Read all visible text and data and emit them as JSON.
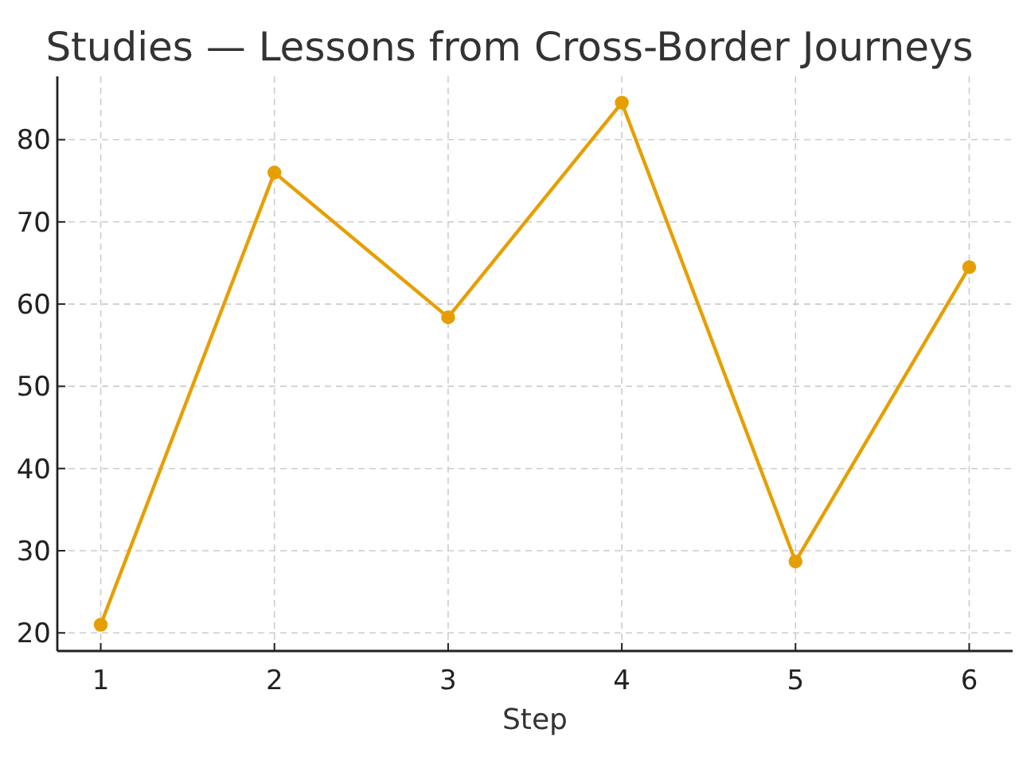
{
  "chart_data": {
    "type": "line",
    "title": "Studies — Lessons from Cross-Border Journeys",
    "xlabel": "Step",
    "x": [
      1,
      2,
      3,
      4,
      5,
      6
    ],
    "series": [
      {
        "color": "#e69f00",
        "values": [
          21.0,
          76.0,
          58.4,
          84.5,
          28.7,
          64.5
        ]
      }
    ],
    "xlim": [
      0.75,
      6.25
    ],
    "xticks": [
      1,
      2,
      3,
      4,
      5,
      6
    ],
    "ylim": [
      17.8,
      87.7
    ],
    "yticks": [
      20,
      30,
      40,
      50,
      60,
      70,
      80
    ],
    "grid": true,
    "marker": "circle",
    "line_style": "solid"
  }
}
